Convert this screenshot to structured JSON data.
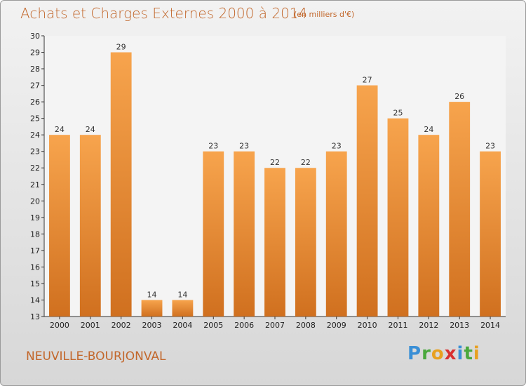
{
  "header": {
    "title": "Achats et Charges Externes 2000 à 2014",
    "unit": "(en milliers d'€)"
  },
  "footer": {
    "place": "NEUVILLE-BOURJONVAL",
    "brand_letters": [
      "P",
      "r",
      "o",
      "x",
      "i",
      "t",
      "i"
    ],
    "brand_colors": [
      "#3a8fd6",
      "#4aa83c",
      "#e8a020",
      "#d83030",
      "#3a8fd6",
      "#4aa83c",
      "#e8a020"
    ]
  },
  "colors": {
    "bar_top": "#f7a44d",
    "bar_bottom": "#d0701f",
    "accent": "#c2672b"
  },
  "chart_data": {
    "type": "bar",
    "title": "Achats et Charges Externes 2000 à 2014",
    "subtitle": "(en milliers d'€)",
    "categories": [
      "2000",
      "2001",
      "2002",
      "2003",
      "2004",
      "2005",
      "2006",
      "2007",
      "2008",
      "2009",
      "2010",
      "2011",
      "2012",
      "2013",
      "2014"
    ],
    "values": [
      24,
      24,
      29,
      14,
      14,
      23,
      23,
      22,
      22,
      23,
      27,
      25,
      24,
      26,
      23
    ],
    "ylim": [
      13,
      30
    ],
    "yticks": [
      13,
      14,
      15,
      16,
      17,
      18,
      19,
      20,
      21,
      22,
      23,
      24,
      25,
      26,
      27,
      28,
      29,
      30
    ],
    "grid": false,
    "legend": "none"
  }
}
